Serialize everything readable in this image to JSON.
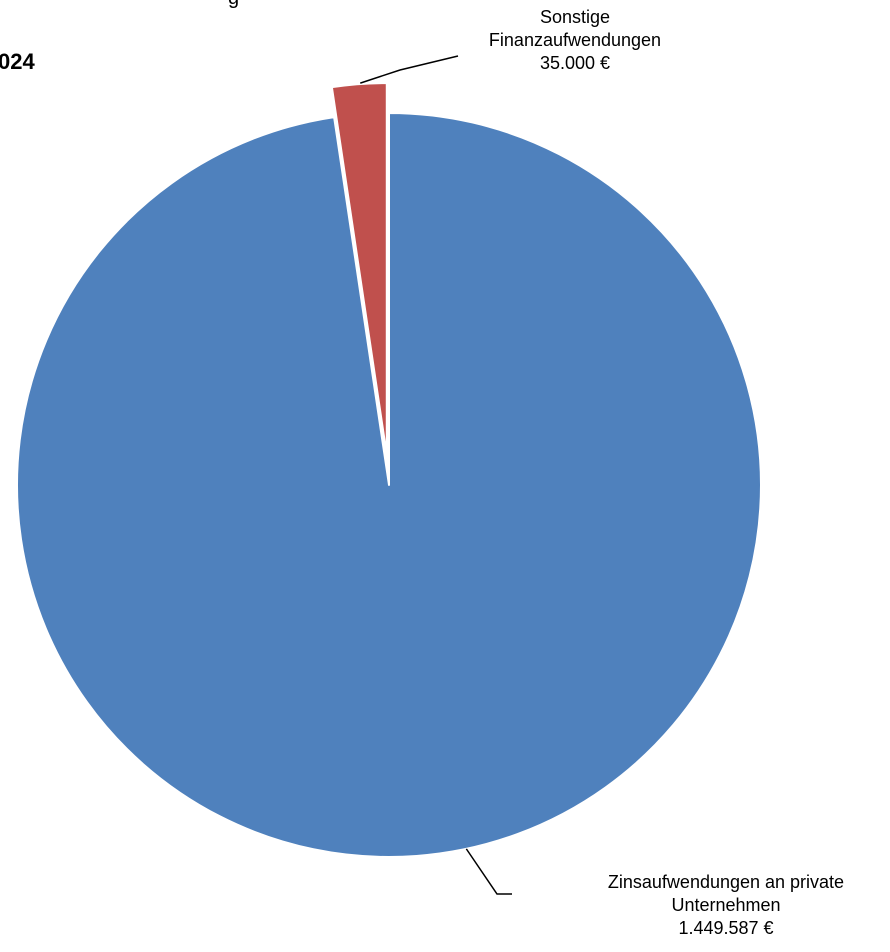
{
  "title_visible_fragment": "024",
  "title_top_fragment": "g",
  "chart_data": {
    "type": "pie",
    "title": "",
    "slices": [
      {
        "label_lines": [
          "Zinsaufwendungen  an private",
          "Unternehmen"
        ],
        "value": 1449587,
        "value_label": "1.449.587 €",
        "color": "#4F81BD",
        "exploded": false
      },
      {
        "label_lines": [
          "Sonstige",
          "Finanzaufwendungen"
        ],
        "value": 35000,
        "value_label": "35.000 €",
        "color": "#C0504D",
        "exploded": true
      }
    ],
    "start_angle_deg": 0,
    "direction": "clockwise",
    "legend": "none",
    "data_labels": "outside-with-leader-lines"
  }
}
